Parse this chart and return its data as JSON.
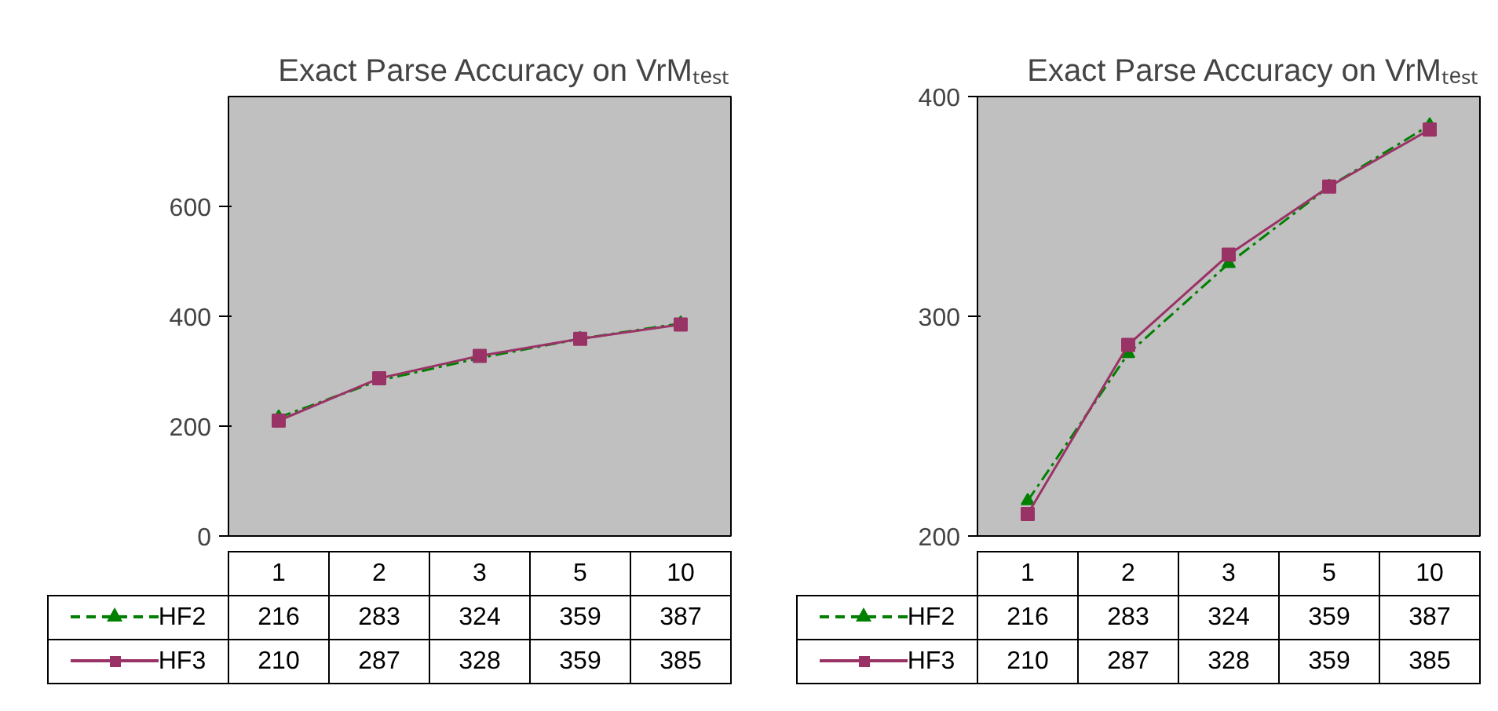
{
  "chart_data": [
    {
      "type": "line",
      "title": "Exact Parse Accuracy on VrMₜₑₛₜ",
      "categories": [
        "1",
        "2",
        "3",
        "5",
        "10"
      ],
      "ylim": [
        0,
        800
      ],
      "yticks": [
        0,
        200,
        400,
        600
      ],
      "tick_labels": "y",
      "grid": false,
      "legend": "bottom",
      "data_labels": true,
      "series": [
        {
          "name": "HF2",
          "color": "#008000",
          "values": [
            216,
            283,
            324,
            359,
            387
          ],
          "marker": "triangle",
          "line_style": "dashed"
        },
        {
          "name": "HF3",
          "color": "#993366",
          "values": [
            210,
            287,
            328,
            359,
            385
          ],
          "marker": "square",
          "line_style": "solid"
        }
      ]
    },
    {
      "type": "line",
      "title": "Exact Parse Accuracy on VrMₜₑₛₜ",
      "categories": [
        "1",
        "2",
        "3",
        "5",
        "10"
      ],
      "ylim": [
        200,
        400
      ],
      "yticks": [
        200,
        300,
        400
      ],
      "tick_labels": "y",
      "grid": false,
      "legend": "bottom",
      "data_labels": true,
      "series": [
        {
          "name": "HF2",
          "color": "#008000",
          "values": [
            216,
            283,
            324,
            359,
            387
          ],
          "marker": "triangle",
          "line_style": "dashed"
        },
        {
          "name": "HF3",
          "color": "#993366",
          "values": [
            210,
            287,
            328,
            359,
            385
          ],
          "marker": "square",
          "line_style": "solid"
        }
      ]
    }
  ]
}
